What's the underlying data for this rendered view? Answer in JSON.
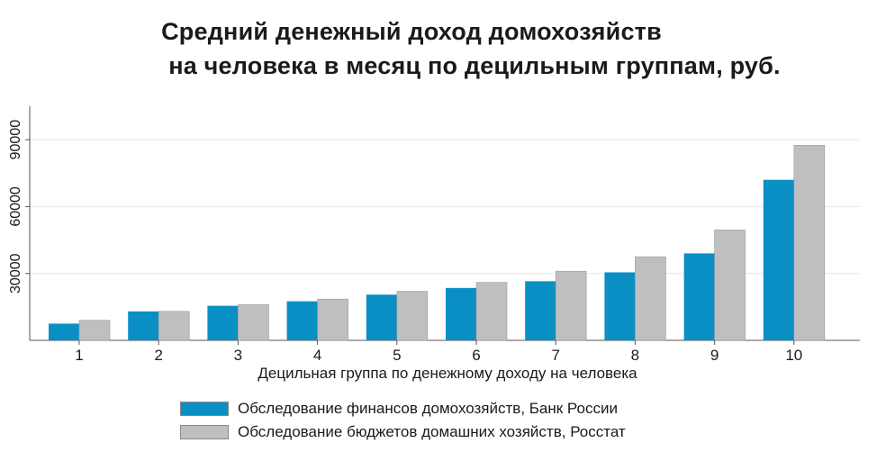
{
  "chart_data": {
    "type": "bar",
    "title_line1": "Средний денежный доход домохозяйств",
    "title_line2": "на человека в месяц по децильным группам, руб.",
    "xlabel": "Децильная группа по денежному доходу на человека",
    "ylabel": "",
    "categories": [
      "1",
      "2",
      "3",
      "4",
      "5",
      "6",
      "7",
      "8",
      "9",
      "10"
    ],
    "yticks": [
      30000,
      60000,
      90000
    ],
    "ytick_labels": [
      "30000",
      "60000",
      "90000"
    ],
    "ylim": [
      0,
      105000
    ],
    "grid": true,
    "legend_position": "bottom",
    "series": [
      {
        "name": "Обследование финансов домохозяйств, Банк России",
        "color": "#0a8fc4",
        "values": [
          7500,
          13000,
          15500,
          17500,
          20500,
          23500,
          26500,
          30500,
          39000,
          72000
        ]
      },
      {
        "name": "Обследование бюджетов домашних хозяйств, Росстат",
        "color": "#bfbfc2",
        "values": [
          9000,
          13000,
          16000,
          18500,
          22000,
          26000,
          31000,
          37500,
          49500,
          87500
        ]
      }
    ]
  }
}
